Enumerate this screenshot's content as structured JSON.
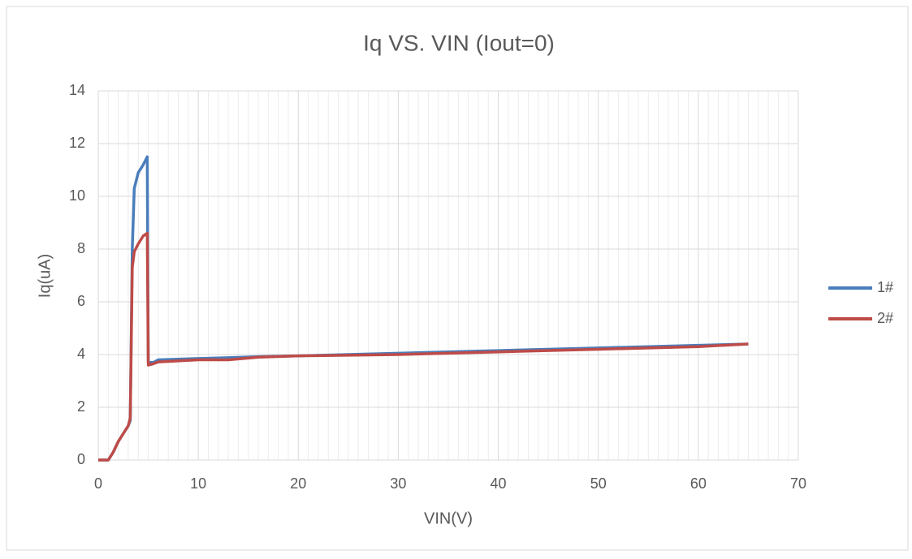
{
  "chart_data": {
    "type": "line",
    "title": "Iq VS. VIN (Iout=0)",
    "xlabel": "VIN(V)",
    "ylabel": "Iq(uA)",
    "x": [
      0,
      1,
      1.5,
      2,
      2.5,
      3,
      3.2,
      3.4,
      3.6,
      4,
      4.5,
      4.9,
      5,
      5.5,
      6,
      10,
      13,
      16,
      20,
      30,
      40,
      50,
      60,
      65
    ],
    "series": [
      {
        "name": "1#",
        "color": "#4a7ebb",
        "values": [
          0,
          0,
          0.3,
          0.7,
          1.0,
          1.3,
          1.5,
          8,
          10.3,
          10.9,
          11.2,
          11.5,
          3.7,
          3.7,
          3.8,
          3.85,
          3.88,
          3.92,
          3.95,
          4.05,
          4.15,
          4.25,
          4.35,
          4.4
        ]
      },
      {
        "name": "2#",
        "color": "#be4b48",
        "values": [
          0,
          0,
          0.3,
          0.7,
          1.0,
          1.3,
          1.6,
          7.3,
          7.9,
          8.2,
          8.5,
          8.6,
          3.6,
          3.65,
          3.72,
          3.8,
          3.8,
          3.9,
          3.95,
          4.0,
          4.1,
          4.2,
          4.3,
          4.4
        ]
      }
    ],
    "xlim": [
      0,
      70
    ],
    "xticks": [
      0,
      10,
      20,
      30,
      40,
      50,
      60,
      70
    ],
    "ylim": [
      0,
      14
    ],
    "yticks": [
      0,
      2,
      4,
      6,
      8,
      10,
      12,
      14
    ],
    "grid": true,
    "minor_grid": true,
    "legend": "right"
  }
}
